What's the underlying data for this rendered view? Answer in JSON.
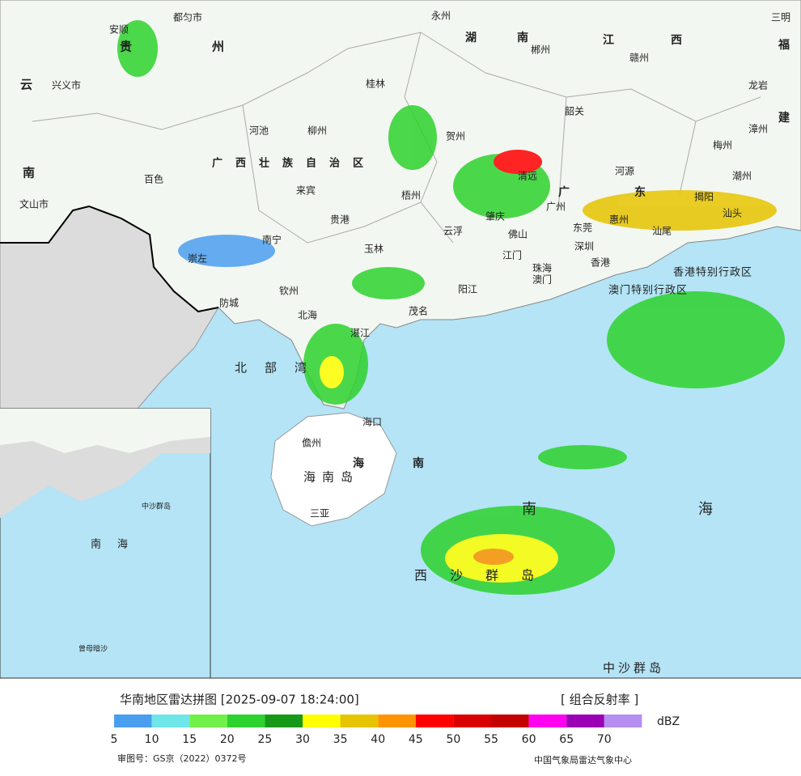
{
  "map_labels": [
    "安顺",
    "都匀市",
    "贵",
    "州",
    "云",
    "兴义市",
    "河池",
    "柳州",
    "百色",
    "广西壮族自治区",
    "来宾",
    "贵港",
    "南宁",
    "玉林",
    "崇左",
    "钦州",
    "防城",
    "北海",
    "茂名",
    "阳江",
    "湛江",
    "北部湾",
    "海口",
    "儋州",
    "海南岛",
    "海",
    "南",
    "三亚",
    "南海",
    "西沙群岛",
    "中沙群岛",
    "湖南",
    "郴州",
    "江西",
    "赣州",
    "三明",
    "福",
    "龙岩",
    "建",
    "漳州",
    "梅州",
    "韶关",
    "贺州",
    "梧州",
    "肇庆",
    "清远",
    "河源",
    "广东",
    "广州",
    "惠州",
    "潮州",
    "揭阳",
    "汕头",
    "汕尾",
    "东莞",
    "深圳",
    "香港",
    "佛山",
    "江门",
    "珠海",
    "澳门",
    "云浮",
    "香港特别行政区",
    "澳门特别行政区",
    "南",
    "文山市",
    "永州",
    "桂林",
    "南海",
    "中沙群岛",
    "曾母暗沙"
  ],
  "legend": {
    "title": "华南地区雷达拼图 [2025-09-07 18:24:00]",
    "product": "[ 组合反射率 ]",
    "unit": "dBZ",
    "colors": [
      "#4a9ef0",
      "#6ee6ea",
      "#72f04a",
      "#2ed22e",
      "#189818",
      "#ffff00",
      "#e6c400",
      "#ff9400",
      "#ff0000",
      "#d80000",
      "#c40000",
      "#ff00f0",
      "#9a00b4",
      "#b48ef0"
    ],
    "ticks": [
      5,
      10,
      15,
      20,
      25,
      30,
      35,
      40,
      45,
      50,
      55,
      60,
      65,
      70
    ]
  },
  "footer": {
    "approval": "审图号：GS京（2022）0372号",
    "source": "中国气象局雷达气象中心"
  }
}
